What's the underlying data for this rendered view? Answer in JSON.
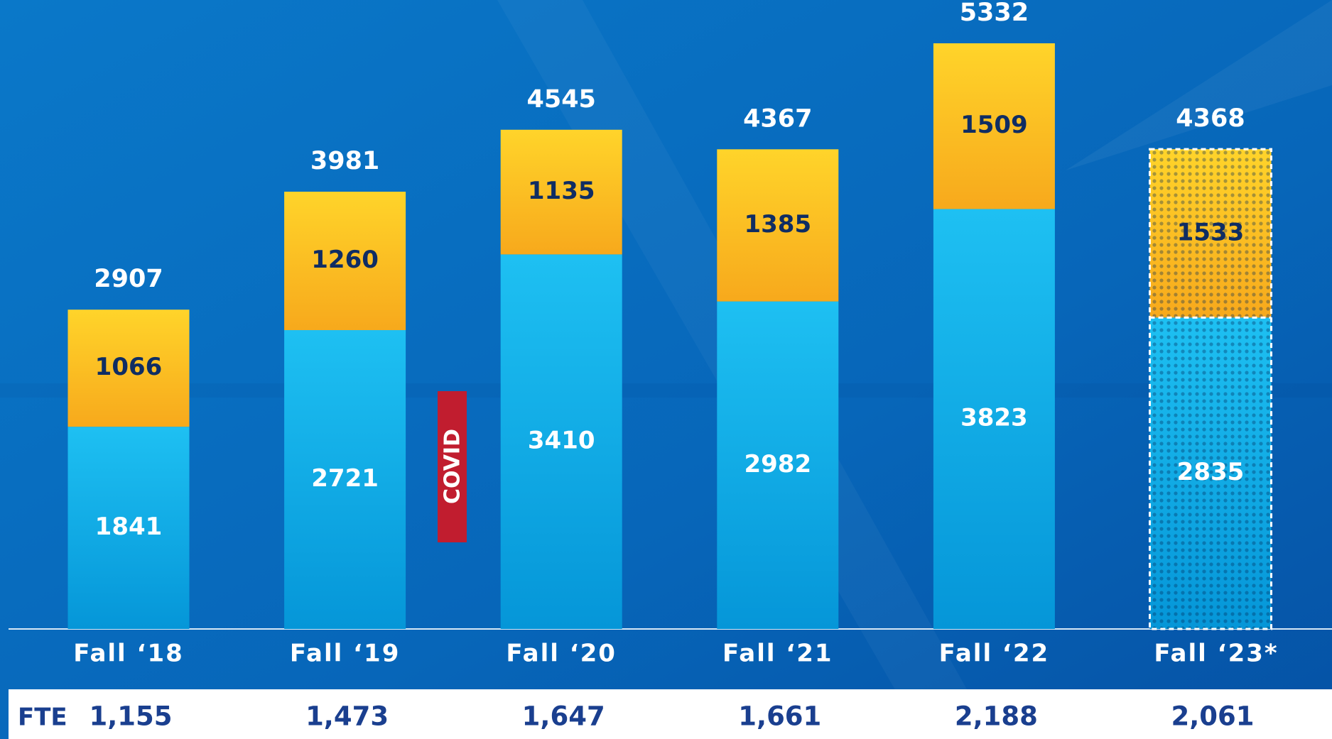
{
  "chart_data": {
    "type": "stacked_bar",
    "categories": [
      "Fall ‘18",
      "Fall ‘19",
      "Fall ‘20",
      "Fall ‘21",
      "Fall ‘22",
      "Fall ‘23*"
    ],
    "series": [
      {
        "color": "#0aa8e8",
        "label_color": "#ffffff",
        "values": [
          1841,
          2721,
          3410,
          2982,
          3823,
          2835
        ]
      },
      {
        "color": "#ffc41c",
        "label_color": "#0f2d63",
        "values": [
          1066,
          1260,
          1135,
          1385,
          1509,
          1533
        ]
      }
    ],
    "totals": [
      2907,
      3981,
      4545,
      4367,
      5332,
      4368
    ],
    "projected": [
      false,
      false,
      false,
      false,
      false,
      true
    ],
    "annotations": [
      {
        "text": "COVID",
        "color": "#c11d2f"
      }
    ],
    "fte": {
      "label": "FTE",
      "values": [
        1155,
        1473,
        1647,
        1661,
        2188,
        2061
      ],
      "value_labels": [
        "1,155",
        "1,473",
        "1,647",
        "1,661",
        "2,188",
        "2,061"
      ]
    }
  }
}
